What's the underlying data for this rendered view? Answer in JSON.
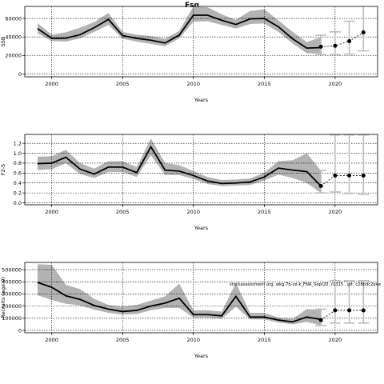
{
  "figure_title": "Fsq",
  "annotation": "stockassessment.org, wkg.7b-ce-k_FNA_Sept20, r1315 , git: c28bdc2e4e",
  "colors": {
    "band": "#b3b3b3",
    "line": "#000000",
    "grid": "#000000",
    "errorbar": "#bdbdbd"
  },
  "chart_data": [
    {
      "type": "line",
      "title": "Fsq",
      "xlabel": "Years",
      "ylabel": "SSB",
      "xlim": [
        1998.1,
        2023.0
      ],
      "ylim": [
        -3000,
        73000
      ],
      "xticks": [
        2000,
        2005,
        2010,
        2015,
        2020
      ],
      "xtick_labels": [
        "2000",
        "2005",
        "2010",
        "2015",
        "2020"
      ],
      "yticks": [
        0,
        20000,
        40000,
        60000
      ],
      "ytick_labels": [
        "0",
        "20000",
        "40000",
        "60000"
      ],
      "grid": true,
      "years": [
        1999,
        2000,
        2001,
        2002,
        2003,
        2004,
        2005,
        2006,
        2007,
        2008,
        2009,
        2010,
        2011,
        2012,
        2013,
        2014,
        2015,
        2016,
        2017,
        2018,
        2019
      ],
      "values": [
        49000,
        38500,
        38700,
        42500,
        50000,
        59000,
        41500,
        38500,
        36500,
        33500,
        42000,
        63500,
        63500,
        58000,
        53500,
        59500,
        60000,
        51000,
        38000,
        28000,
        28500
      ],
      "lower": [
        44000,
        35500,
        35000,
        38500,
        45500,
        53000,
        38000,
        35000,
        32500,
        30000,
        38500,
        56500,
        57000,
        53000,
        49000,
        54000,
        54500,
        45500,
        33000,
        22500,
        22000
      ],
      "upper": [
        55000,
        42500,
        45000,
        50000,
        56000,
        66000,
        45500,
        42500,
        41000,
        38000,
        46500,
        73000,
        72000,
        64500,
        58500,
        68000,
        70000,
        58000,
        45500,
        34500,
        40000
      ],
      "forecast": {
        "years": [
          2019,
          2020,
          2021,
          2022
        ],
        "values": [
          29500,
          30500,
          35500,
          45000
        ],
        "lower": [
          21000,
          21000,
          21500,
          25000
        ],
        "upper": [
          42000,
          45500,
          57000,
          74000
        ]
      }
    },
    {
      "type": "line",
      "title": "",
      "xlabel": "Years",
      "ylabel": "F2-5",
      "xlim": [
        1998.1,
        2023.0
      ],
      "ylim": [
        -0.04,
        1.38
      ],
      "xticks": [
        2000,
        2005,
        2010,
        2015,
        2020
      ],
      "xtick_labels": [
        "2000",
        "2005",
        "2010",
        "2015",
        "2020"
      ],
      "yticks": [
        0.0,
        0.2,
        0.4,
        0.6,
        0.8,
        1.0,
        1.2
      ],
      "ytick_labels": [
        "0.0",
        "0.2",
        "0.4",
        "0.6",
        "0.8",
        "1.0",
        "1.2"
      ],
      "grid": true,
      "years": [
        1999,
        2000,
        2001,
        2002,
        2003,
        2004,
        2005,
        2006,
        2007,
        2008,
        2009,
        2010,
        2011,
        2012,
        2013,
        2014,
        2015,
        2016,
        2017,
        2018,
        2019
      ],
      "values": [
        0.79,
        0.8,
        0.92,
        0.68,
        0.58,
        0.72,
        0.72,
        0.61,
        1.13,
        0.66,
        0.64,
        0.55,
        0.44,
        0.39,
        0.4,
        0.42,
        0.52,
        0.7,
        0.66,
        0.63,
        0.34
      ],
      "lower": [
        0.66,
        0.68,
        0.8,
        0.58,
        0.5,
        0.62,
        0.62,
        0.52,
        0.96,
        0.56,
        0.56,
        0.48,
        0.38,
        0.34,
        0.35,
        0.36,
        0.45,
        0.57,
        0.5,
        0.4,
        0.2
      ],
      "upper": [
        0.93,
        0.94,
        1.07,
        0.8,
        0.69,
        0.84,
        0.84,
        0.72,
        1.3,
        0.8,
        0.76,
        0.64,
        0.52,
        0.46,
        0.47,
        0.49,
        0.61,
        0.84,
        0.86,
        1.0,
        0.65
      ],
      "forecast": {
        "years": [
          2019,
          2020,
          2021,
          2022
        ],
        "values": [
          0.34,
          0.55,
          0.55,
          0.55
        ],
        "lower": [
          0.2,
          0.22,
          0.19,
          0.17
        ],
        "upper": [
          0.65,
          1.37,
          1.37,
          1.37
        ]
      }
    },
    {
      "type": "line",
      "title": "",
      "xlabel": "Years",
      "ylabel": "Recruits (age 0)",
      "xlim": [
        1998.1,
        2023.0
      ],
      "ylim": [
        -20000,
        560000
      ],
      "xticks": [
        2000,
        2005,
        2010,
        2015,
        2020
      ],
      "xtick_labels": [
        "2000",
        "2005",
        "2010",
        "2015",
        "2020"
      ],
      "yticks": [
        0,
        100000,
        200000,
        300000,
        400000,
        500000
      ],
      "ytick_labels": [
        "0",
        "100000",
        "200000",
        "300000",
        "400000",
        "500000"
      ],
      "grid": true,
      "years": [
        1999,
        2000,
        2001,
        2002,
        2003,
        2004,
        2005,
        2006,
        2007,
        2008,
        2009,
        2010,
        2011,
        2012,
        2013,
        2014,
        2015,
        2016,
        2017,
        2018,
        2019
      ],
      "values": [
        395000,
        355000,
        285000,
        255000,
        205000,
        175000,
        155000,
        165000,
        200000,
        225000,
        265000,
        130000,
        130000,
        120000,
        280000,
        110000,
        110000,
        85000,
        70000,
        110000,
        90000
      ],
      "lower": [
        290000,
        250000,
        220000,
        205000,
        170000,
        145000,
        130000,
        135000,
        165000,
        185000,
        185000,
        105000,
        105000,
        95000,
        195000,
        90000,
        90000,
        65000,
        50000,
        70000,
        40000
      ],
      "upper": [
        545000,
        540000,
        375000,
        340000,
        260000,
        210000,
        195000,
        210000,
        245000,
        280000,
        385000,
        165000,
        165000,
        155000,
        390000,
        145000,
        145000,
        105000,
        95000,
        175000,
        170000
      ],
      "forecast": {
        "years": [
          2019,
          2020,
          2021,
          2022
        ],
        "values": [
          85000,
          165000,
          165000,
          165000
        ],
        "lower": [
          40000,
          60000,
          60000,
          60000
        ],
        "upper": [
          175000,
          410000,
          410000,
          410000
        ]
      }
    }
  ]
}
